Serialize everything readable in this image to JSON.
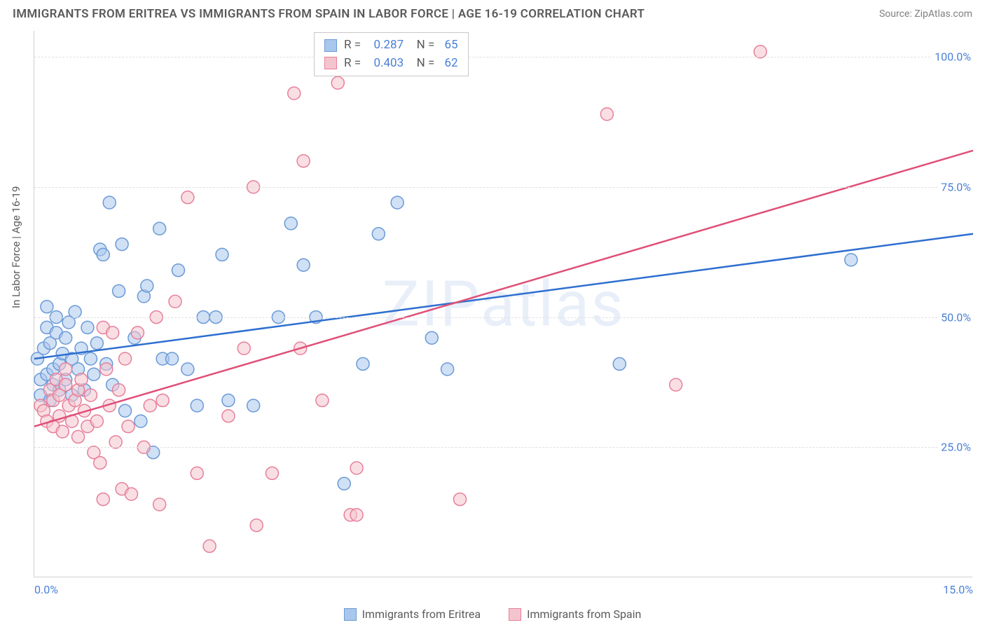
{
  "header": {
    "title": "IMMIGRANTS FROM ERITREA VS IMMIGRANTS FROM SPAIN IN LABOR FORCE | AGE 16-19 CORRELATION CHART",
    "source": "Source: ZipAtlas.com"
  },
  "watermark": "ZIPatlas",
  "chart": {
    "type": "scatter",
    "y_axis_title": "In Labor Force | Age 16-19",
    "xlim": [
      0,
      15
    ],
    "ylim": [
      0,
      105
    ],
    "x_ticks": [
      {
        "val": 0.0,
        "label": "0.0%",
        "align": "left"
      },
      {
        "val": 15.0,
        "label": "15.0%",
        "align": "right"
      }
    ],
    "y_ticks": [
      {
        "val": 25,
        "label": "25.0%"
      },
      {
        "val": 50,
        "label": "50.0%"
      },
      {
        "val": 75,
        "label": "75.0%"
      },
      {
        "val": 100,
        "label": "100.0%"
      }
    ],
    "series": [
      {
        "name": "Immigrants from Eritrea",
        "fill": "#a9c7ec",
        "stroke": "#6a9ad6",
        "line_color": "#2e6fd0",
        "marker_r": 9,
        "R": "0.287",
        "N": "65",
        "trend": {
          "x1": 0,
          "y1": 42,
          "x2": 15,
          "y2": 66
        },
        "points": [
          [
            0.05,
            42
          ],
          [
            0.1,
            38
          ],
          [
            0.1,
            35
          ],
          [
            0.15,
            44
          ],
          [
            0.2,
            39
          ],
          [
            0.2,
            48
          ],
          [
            0.2,
            52
          ],
          [
            0.25,
            34
          ],
          [
            0.25,
            45
          ],
          [
            0.3,
            40
          ],
          [
            0.3,
            37
          ],
          [
            0.35,
            50
          ],
          [
            0.35,
            47
          ],
          [
            0.4,
            41
          ],
          [
            0.4,
            36
          ],
          [
            0.45,
            43
          ],
          [
            0.5,
            46
          ],
          [
            0.5,
            38
          ],
          [
            0.55,
            49
          ],
          [
            0.6,
            42
          ],
          [
            0.6,
            35
          ],
          [
            0.65,
            51
          ],
          [
            0.7,
            40
          ],
          [
            0.75,
            44
          ],
          [
            0.8,
            36
          ],
          [
            0.85,
            48
          ],
          [
            0.9,
            42
          ],
          [
            0.95,
            39
          ],
          [
            1.0,
            45
          ],
          [
            1.05,
            63
          ],
          [
            1.1,
            62
          ],
          [
            1.15,
            41
          ],
          [
            1.2,
            72
          ],
          [
            1.25,
            37
          ],
          [
            1.35,
            55
          ],
          [
            1.4,
            64
          ],
          [
            1.45,
            32
          ],
          [
            1.6,
            46
          ],
          [
            1.7,
            30
          ],
          [
            1.75,
            54
          ],
          [
            1.8,
            56
          ],
          [
            1.9,
            24
          ],
          [
            2.0,
            67
          ],
          [
            2.05,
            42
          ],
          [
            2.2,
            42
          ],
          [
            2.3,
            59
          ],
          [
            2.45,
            40
          ],
          [
            2.6,
            33
          ],
          [
            2.7,
            50
          ],
          [
            2.9,
            50
          ],
          [
            3.0,
            62
          ],
          [
            3.1,
            34
          ],
          [
            3.5,
            33
          ],
          [
            3.9,
            50
          ],
          [
            4.1,
            68
          ],
          [
            4.3,
            60
          ],
          [
            4.5,
            50
          ],
          [
            4.95,
            18
          ],
          [
            5.25,
            41
          ],
          [
            5.5,
            66
          ],
          [
            5.8,
            72
          ],
          [
            6.35,
            46
          ],
          [
            6.6,
            40
          ],
          [
            13.05,
            61
          ],
          [
            9.35,
            41
          ]
        ]
      },
      {
        "name": "Immigrants from Spain",
        "fill": "#f4c4ce",
        "stroke": "#e77f9a",
        "line_color": "#e05078",
        "marker_r": 9,
        "R": "0.403",
        "N": "62",
        "trend": {
          "x1": 0,
          "y1": 29,
          "x2": 15,
          "y2": 82
        },
        "points": [
          [
            0.1,
            33
          ],
          [
            0.15,
            32
          ],
          [
            0.2,
            30
          ],
          [
            0.25,
            36
          ],
          [
            0.3,
            34
          ],
          [
            0.3,
            29
          ],
          [
            0.35,
            38
          ],
          [
            0.4,
            31
          ],
          [
            0.4,
            35
          ],
          [
            0.45,
            28
          ],
          [
            0.5,
            37
          ],
          [
            0.5,
            40
          ],
          [
            0.55,
            33
          ],
          [
            0.6,
            30
          ],
          [
            0.65,
            34
          ],
          [
            0.7,
            27
          ],
          [
            0.7,
            36
          ],
          [
            0.75,
            38
          ],
          [
            0.8,
            32
          ],
          [
            0.85,
            29
          ],
          [
            0.9,
            35
          ],
          [
            0.95,
            24
          ],
          [
            1.0,
            30
          ],
          [
            1.05,
            22
          ],
          [
            1.1,
            48
          ],
          [
            1.1,
            15
          ],
          [
            1.15,
            40
          ],
          [
            1.2,
            33
          ],
          [
            1.25,
            47
          ],
          [
            1.3,
            26
          ],
          [
            1.35,
            36
          ],
          [
            1.4,
            17
          ],
          [
            1.45,
            42
          ],
          [
            1.5,
            29
          ],
          [
            1.55,
            16
          ],
          [
            1.65,
            47
          ],
          [
            1.75,
            25
          ],
          [
            1.85,
            33
          ],
          [
            1.95,
            50
          ],
          [
            2.05,
            34
          ],
          [
            2.25,
            53
          ],
          [
            2.45,
            73
          ],
          [
            2.6,
            20
          ],
          [
            2.8,
            6
          ],
          [
            3.1,
            31
          ],
          [
            3.35,
            44
          ],
          [
            3.5,
            75
          ],
          [
            3.55,
            10
          ],
          [
            3.8,
            20
          ],
          [
            4.15,
            93
          ],
          [
            4.25,
            44
          ],
          [
            4.3,
            80
          ],
          [
            4.85,
            95
          ],
          [
            5.05,
            12
          ],
          [
            5.15,
            12
          ],
          [
            5.15,
            21
          ],
          [
            6.8,
            15
          ],
          [
            9.15,
            89
          ],
          [
            10.25,
            37
          ],
          [
            11.6,
            101
          ],
          [
            4.6,
            34
          ],
          [
            2.0,
            14
          ]
        ]
      }
    ],
    "background_color": "#ffffff",
    "grid_color": "#e0e0e0"
  }
}
